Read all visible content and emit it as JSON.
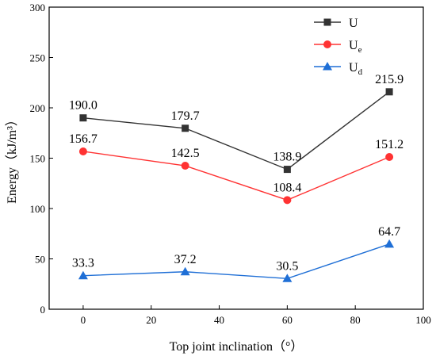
{
  "chart_data": {
    "type": "line",
    "xlabel": "Top joint inclination（°）",
    "ylabel": "Energy（kJ/m³）",
    "xlim": [
      -10,
      100
    ],
    "ylim": [
      0,
      300
    ],
    "xticks": [
      "0",
      "20",
      "40",
      "60",
      "80",
      "100"
    ],
    "yticks": [
      "0",
      "50",
      "100",
      "150",
      "200",
      "250",
      "300"
    ],
    "x": [
      0,
      30,
      60,
      90
    ],
    "legend_position": "top-right",
    "grid": false,
    "series": [
      {
        "name": "U",
        "name_main": "U",
        "name_sub": "",
        "color": "#333333",
        "marker": "square",
        "values": [
          190.0,
          179.7,
          138.9,
          215.9
        ],
        "labels": [
          "190.0",
          "179.7",
          "138.9",
          "215.9"
        ]
      },
      {
        "name": "Ue",
        "name_main": "U",
        "name_sub": "e",
        "color": "#ff3333",
        "marker": "circle",
        "values": [
          156.7,
          142.5,
          108.4,
          151.2
        ],
        "labels": [
          "156.7",
          "142.5",
          "108.4",
          "151.2"
        ]
      },
      {
        "name": "Ud",
        "name_main": "U",
        "name_sub": "d",
        "color": "#1f6fd6",
        "marker": "triangle",
        "values": [
          33.3,
          37.2,
          30.5,
          64.7
        ],
        "labels": [
          "33.3",
          "37.2",
          "30.5",
          "64.7"
        ]
      }
    ]
  }
}
